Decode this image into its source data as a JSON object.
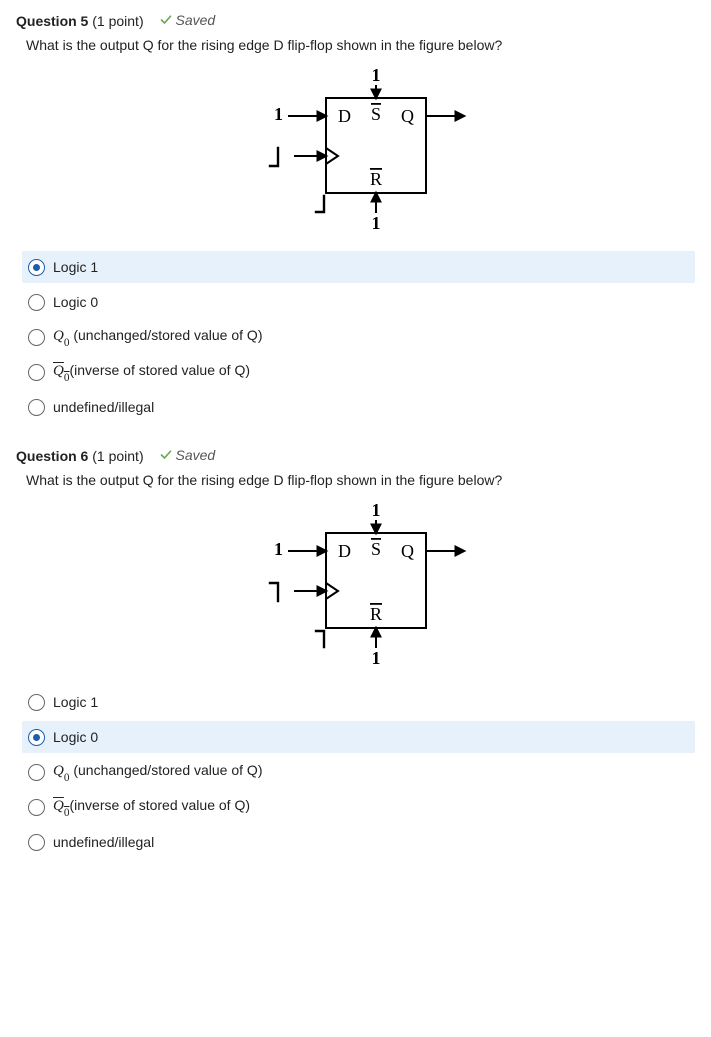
{
  "questions": [
    {
      "number": "Question 5",
      "points": "(1 point)",
      "saved_label": "Saved",
      "prompt": "What is the output Q for the rising edge D flip-flop shown in the figure below?",
      "clock_glyph_id": "clk-rising",
      "options": [
        {
          "html": "Logic 1",
          "selected": true
        },
        {
          "html": "Logic 0",
          "selected": false
        },
        {
          "html": "<span class=\"math-q\">Q<span class=\"sub0\">0</span></span> (unchanged/stored value of Q)",
          "selected": false
        },
        {
          "html": "<span class=\"math-q qbar\">Q<span class=\"sub0\">0</span></span>(inverse of stored value of Q)",
          "selected": false
        },
        {
          "html": "undefined/illegal",
          "selected": false
        }
      ],
      "fig": {
        "top_label": "1",
        "left_d_label": "1",
        "bottom_label": "1",
        "D": "D",
        "Sbar": "S",
        "Rbar": "R",
        "Q": "Q"
      }
    },
    {
      "number": "Question 6",
      "points": "(1 point)",
      "saved_label": "Saved",
      "prompt": "What is the output Q for the rising edge D flip-flop shown in the figure below?",
      "clock_glyph_id": "clk-falling",
      "options": [
        {
          "html": "Logic 1",
          "selected": false
        },
        {
          "html": "Logic 0",
          "selected": true
        },
        {
          "html": "<span class=\"math-q\">Q<span class=\"sub0\">0</span></span> (unchanged/stored value of Q)",
          "selected": false
        },
        {
          "html": "<span class=\"math-q qbar\">Q<span class=\"sub0\">0</span></span>(inverse of stored value of Q)",
          "selected": false
        },
        {
          "html": "undefined/illegal",
          "selected": false
        }
      ],
      "fig": {
        "top_label": "1",
        "left_d_label": "1",
        "bottom_label": "1",
        "D": "D",
        "Sbar": "S",
        "Rbar": "R",
        "Q": "Q"
      }
    }
  ],
  "colors": {
    "check": "#6aa84f",
    "selected_bg": "#e6f1fb",
    "radio_active": "#1d5ea8"
  }
}
